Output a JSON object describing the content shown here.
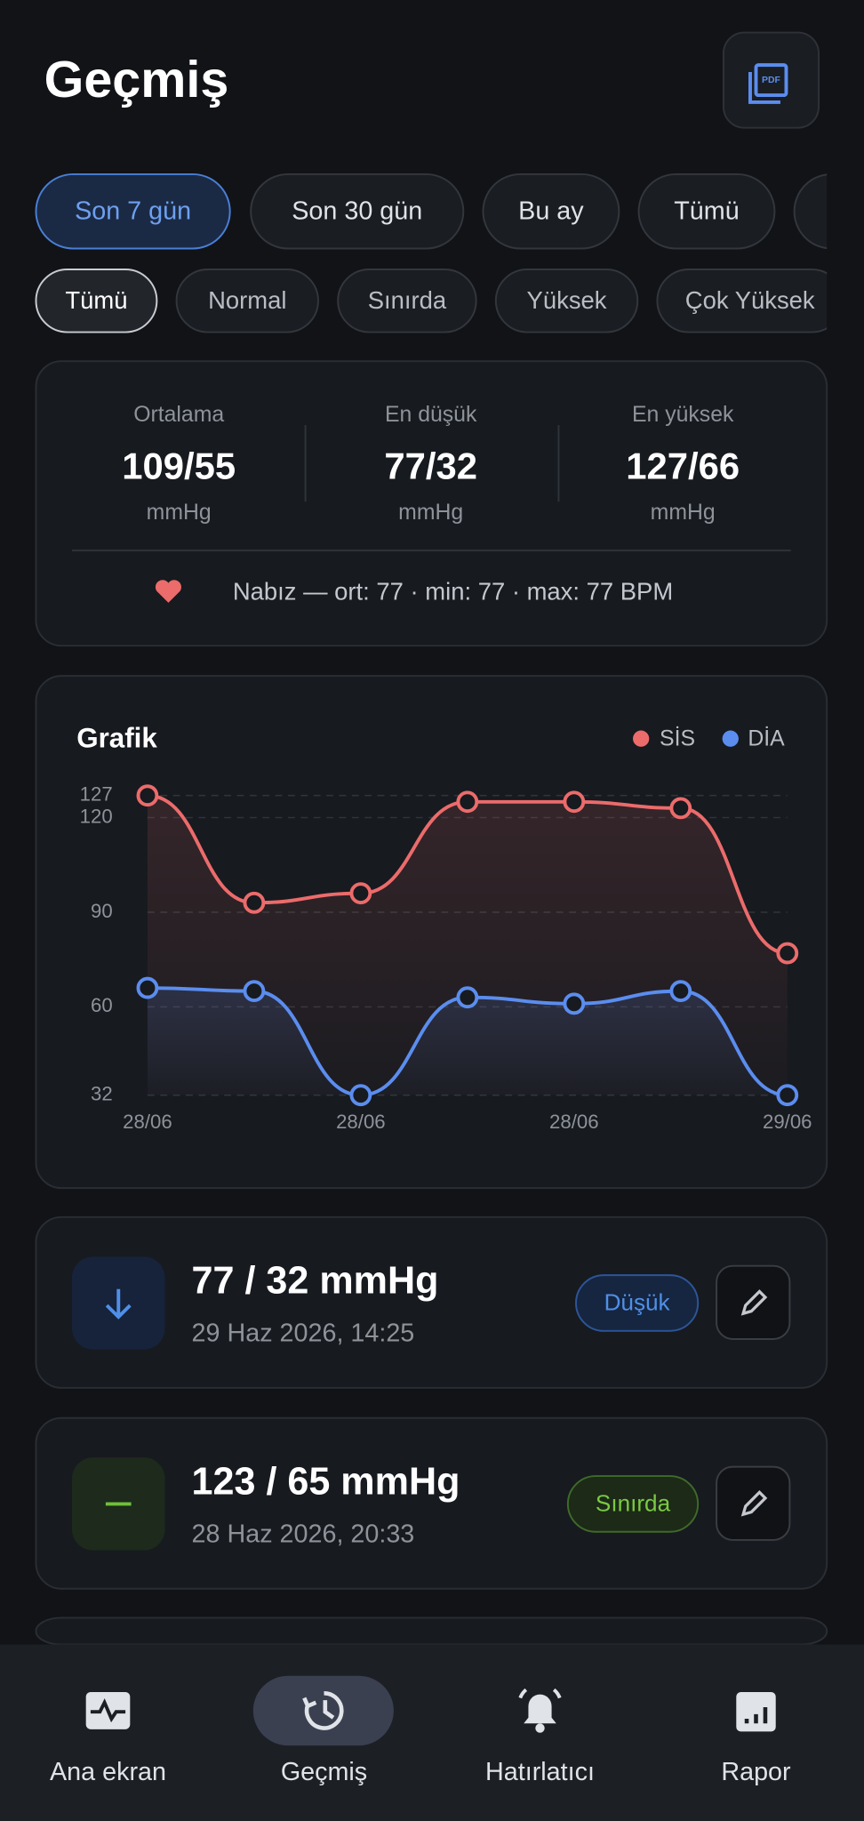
{
  "header": {
    "title": "Geçmiş"
  },
  "period_filters": [
    "Son 7 gün",
    "Son 30 gün",
    "Bu ay",
    "Tümü"
  ],
  "status_filters": [
    "Tümü",
    "Normal",
    "Sınırda",
    "Yüksek",
    "Çok Yüksek"
  ],
  "stats": {
    "items": [
      {
        "label": "Ortalama",
        "value": "109/55",
        "unit": "mmHg"
      },
      {
        "label": "En düşük",
        "value": "77/32",
        "unit": "mmHg"
      },
      {
        "label": "En yüksek",
        "value": "127/66",
        "unit": "mmHg"
      }
    ],
    "pulse": "Nabız — ort: 77 · min: 77 · max: 77 BPM"
  },
  "chart_data": {
    "type": "line",
    "title": "Grafik",
    "categories": [
      "28/06",
      null,
      "28/06",
      null,
      "28/06",
      null,
      "29/06"
    ],
    "series": [
      {
        "name": "SİS",
        "color": "#ec6b6b",
        "values": [
          127,
          93,
          96,
          125,
          125,
          123,
          77
        ]
      },
      {
        "name": "DİA",
        "color": "#5b8def",
        "values": [
          66,
          65,
          32,
          63,
          61,
          65,
          32
        ]
      }
    ],
    "ylim": [
      32,
      127
    ],
    "yticks": [
      32,
      60,
      90,
      120,
      127
    ],
    "grid": true,
    "legend": "top-right"
  },
  "records": [
    {
      "value": "77 / 32 mmHg",
      "date": "29 Haz 2026, 14:25",
      "status": "Düşük"
    },
    {
      "value": "123 / 65 mmHg",
      "date": "28 Haz 2026, 20:33",
      "status": "Sınırda"
    }
  ],
  "nav": [
    "Ana ekran",
    "Geçmiş",
    "Hatırlatıcı",
    "Rapor"
  ]
}
